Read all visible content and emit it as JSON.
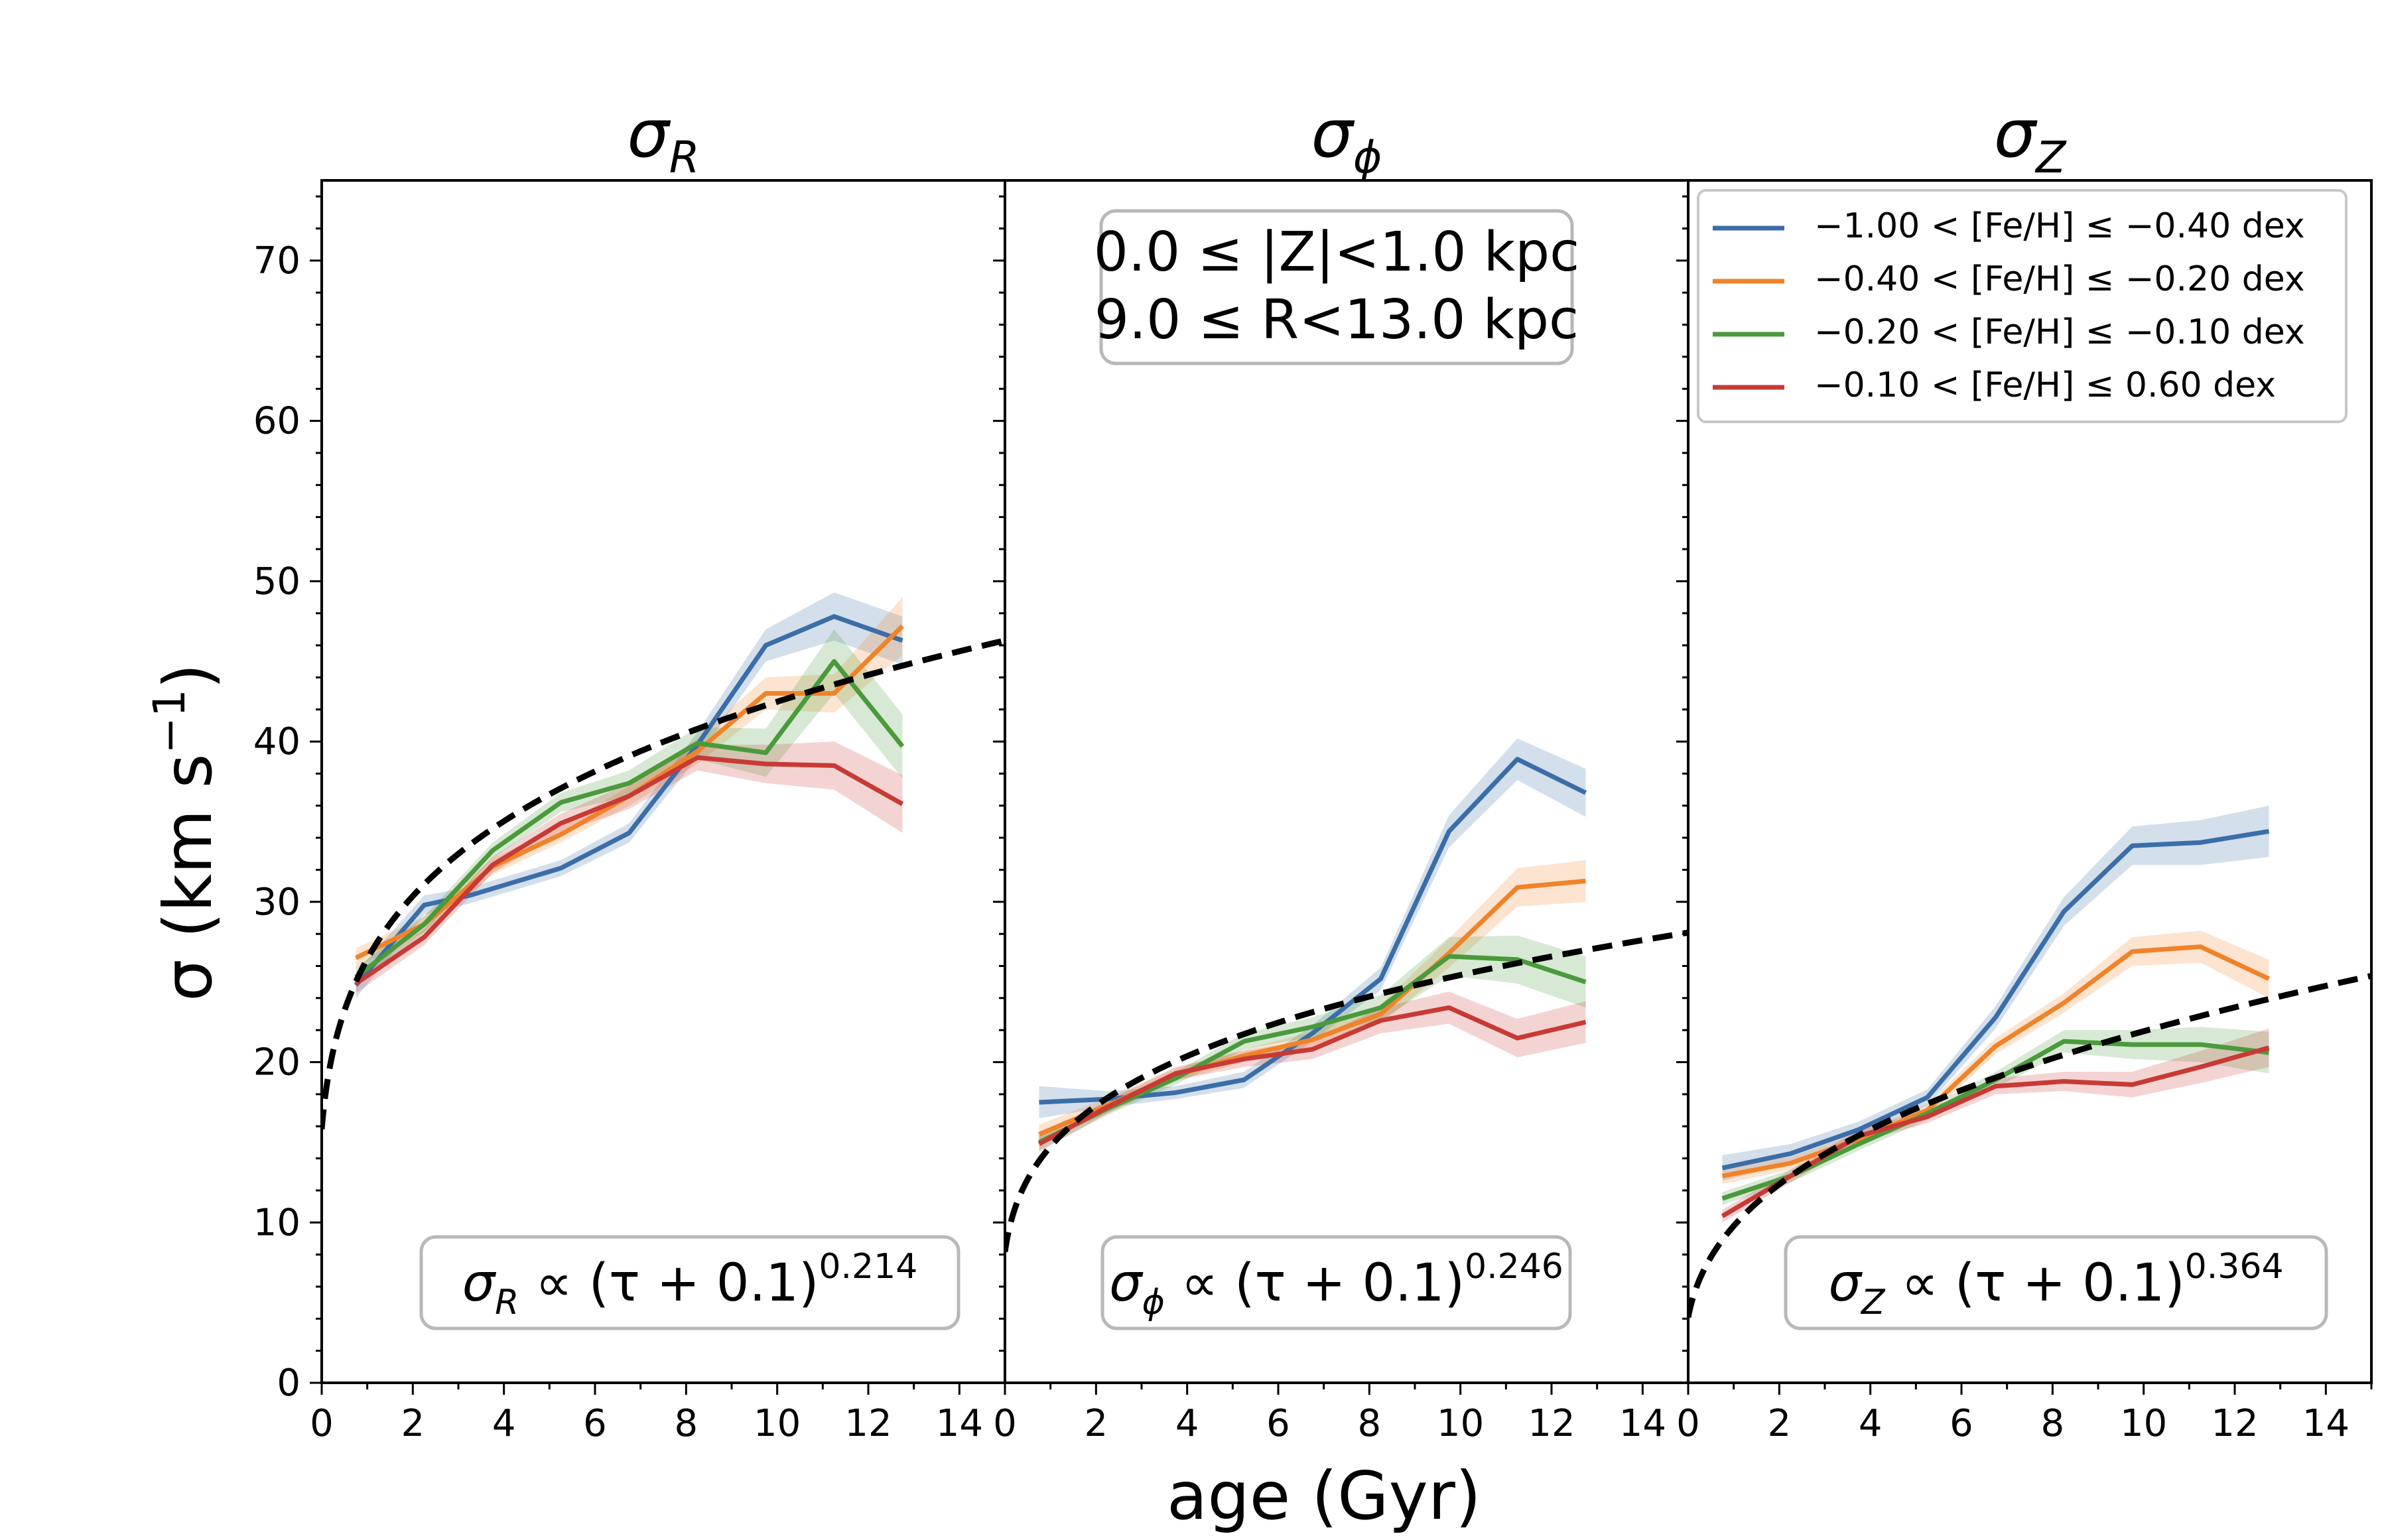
{
  "figure": {
    "ylabel_main": "σ (km s",
    "ylabel_exp": "−1",
    "ylabel_close": ")",
    "xlabel": "age (Gyr)"
  },
  "legend": {
    "entries": [
      {
        "label": "−1.00 < [Fe/H] ≤  −0.40 dex",
        "color": "#3b6ea8"
      },
      {
        "label": "−0.40 < [Fe/H] ≤  −0.20 dex",
        "color": "#f0832a"
      },
      {
        "label": "−0.20 < [Fe/H] ≤  −0.10 dex",
        "color": "#4a9a3c"
      },
      {
        "label": "−0.10 < [Fe/H] ≤  0.60 dex",
        "color": "#c83a35"
      }
    ]
  },
  "annotation": {
    "line1": "0.0 ≤ |Z|<1.0 kpc",
    "line2": "9.0 ≤ R<13.0 kpc"
  },
  "chart_data": [
    {
      "type": "line",
      "title": "σR",
      "title_base": "σ",
      "title_sub": "R",
      "xlabel": "age (Gyr)",
      "ylabel": "σ (km s−1)",
      "xlim": [
        0,
        15
      ],
      "ylim": [
        0,
        75
      ],
      "xticks": [
        "0",
        "2",
        "4",
        "6",
        "8",
        "10",
        "12",
        "14"
      ],
      "yticks": [
        "0",
        "10",
        "20",
        "30",
        "40",
        "50",
        "60",
        "70"
      ],
      "fit": {
        "exponent": "0.214",
        "exp_value": 0.214,
        "amplitude": 25.9,
        "offset": 0.1,
        "label_base": "σ",
        "label_sub": "R",
        "label_mid": " ∝  (τ + 0.1)",
        "label_exp": "0.214"
      },
      "series": [
        {
          "name": "−1.00 < [Fe/H] ≤ −0.40 dex",
          "color": "#3b6ea8",
          "x": [
            0.75,
            2.25,
            3.25,
            5.25,
            6.75,
            8.25,
            9.75,
            11.25,
            12.75
          ],
          "values": [
            24.8,
            29.8,
            30.4,
            32.1,
            34.3,
            39.8,
            46.0,
            47.8,
            46.3
          ],
          "err": [
            0.8,
            0.6,
            0.5,
            0.5,
            0.6,
            0.8,
            1.0,
            1.5,
            1.5
          ]
        },
        {
          "name": "−0.40 < [Fe/H] ≤ −0.20 dex",
          "color": "#f0832a",
          "x": [
            0.75,
            2.25,
            3.75,
            5.25,
            6.75,
            8.25,
            9.75,
            11.25,
            12.75
          ],
          "values": [
            26.5,
            28.6,
            32.2,
            34.2,
            36.6,
            39.4,
            43.0,
            43.0,
            47.2
          ],
          "err": [
            0.6,
            0.5,
            0.5,
            0.5,
            0.6,
            0.8,
            1.0,
            1.2,
            1.8
          ]
        },
        {
          "name": "−0.20 < [Fe/H] ≤ −0.10 dex",
          "color": "#4a9a3c",
          "x": [
            0.75,
            2.25,
            3.75,
            5.25,
            6.75,
            8.25,
            9.75,
            11.25,
            12.75
          ],
          "values": [
            25.3,
            28.6,
            33.2,
            36.2,
            37.4,
            39.9,
            39.3,
            45.0,
            39.7
          ],
          "err": [
            0.6,
            0.5,
            0.5,
            0.6,
            0.8,
            1.0,
            1.5,
            2.0,
            2.0
          ]
        },
        {
          "name": "−0.10 < [Fe/H] ≤ 0.60 dex",
          "color": "#c83a35",
          "x": [
            0.75,
            2.25,
            3.75,
            5.25,
            6.75,
            8.25,
            9.75,
            11.25,
            12.75
          ],
          "values": [
            24.9,
            27.8,
            32.3,
            34.9,
            36.6,
            39.0,
            38.6,
            38.5,
            36.1
          ],
          "err": [
            0.6,
            0.5,
            0.5,
            0.6,
            0.8,
            0.8,
            1.2,
            1.5,
            1.8
          ]
        }
      ]
    },
    {
      "type": "line",
      "title": "σφ",
      "title_base": "σ",
      "title_sub": "ϕ",
      "xlabel": "age (Gyr)",
      "ylabel": "σ (km s−1)",
      "xlim": [
        0,
        15
      ],
      "ylim": [
        0,
        75
      ],
      "xticks": [
        "0",
        "2",
        "4",
        "6",
        "8",
        "10",
        "12",
        "14"
      ],
      "yticks": [],
      "fit": {
        "exponent": "0.246",
        "exp_value": 0.246,
        "amplitude": 14.4,
        "offset": 0.1,
        "label_base": "σ",
        "label_sub": "ϕ",
        "label_mid": " ∝  (τ + 0.1)",
        "label_exp": "0.246"
      },
      "series": [
        {
          "name": "−1.00 < [Fe/H] ≤ −0.40 dex",
          "color": "#3b6ea8",
          "x": [
            0.75,
            2.25,
            3.75,
            5.25,
            6.75,
            8.25,
            9.75,
            11.25,
            12.75
          ],
          "values": [
            17.5,
            17.7,
            18.1,
            18.9,
            21.8,
            25.2,
            34.4,
            38.9,
            36.8
          ],
          "err": [
            1.0,
            0.5,
            0.4,
            0.5,
            0.5,
            0.7,
            1.0,
            1.3,
            1.5
          ]
        },
        {
          "name": "−0.40 < [Fe/H] ≤ −0.20 dex",
          "color": "#f0832a",
          "x": [
            0.75,
            2.25,
            3.75,
            5.25,
            6.75,
            8.25,
            9.75,
            11.25,
            12.75
          ],
          "values": [
            15.5,
            17.3,
            19.2,
            20.4,
            21.4,
            23.0,
            26.8,
            30.9,
            31.3
          ],
          "err": [
            0.6,
            0.5,
            0.4,
            0.4,
            0.5,
            0.6,
            0.9,
            1.2,
            1.3
          ]
        },
        {
          "name": "−0.20 < [Fe/H] ≤ −0.10 dex",
          "color": "#4a9a3c",
          "x": [
            0.75,
            2.25,
            3.75,
            5.25,
            6.75,
            8.25,
            9.75,
            11.25,
            12.75
          ],
          "values": [
            15.0,
            17.1,
            19.0,
            21.3,
            22.2,
            23.4,
            26.6,
            26.4,
            25.0
          ],
          "err": [
            0.5,
            0.4,
            0.4,
            0.5,
            0.6,
            0.8,
            1.2,
            1.5,
            1.6
          ]
        },
        {
          "name": "−0.10 < [Fe/H] ≤ 0.60 dex",
          "color": "#c83a35",
          "x": [
            0.75,
            2.25,
            3.75,
            5.25,
            6.75,
            8.25,
            9.75,
            11.25,
            12.75
          ],
          "values": [
            14.9,
            17.2,
            19.3,
            20.2,
            20.8,
            22.6,
            23.4,
            21.5,
            22.5
          ],
          "err": [
            0.5,
            0.4,
            0.4,
            0.5,
            0.6,
            0.8,
            1.0,
            1.2,
            1.3
          ]
        }
      ]
    },
    {
      "type": "line",
      "title": "σZ",
      "title_base": "σ",
      "title_sub": "Z",
      "xlabel": "age (Gyr)",
      "ylabel": "σ (km s−1)",
      "xlim": [
        0,
        15
      ],
      "ylim": [
        0,
        75
      ],
      "xticks": [
        "0",
        "2",
        "4",
        "6",
        "8",
        "10",
        "12",
        "14"
      ],
      "yticks": [],
      "fit": {
        "exponent": "0.364",
        "exp_value": 0.364,
        "amplitude": 9.45,
        "offset": 0.1,
        "label_base": "σ",
        "label_sub": "Z",
        "label_mid": " ∝  (τ + 0.1)",
        "label_exp": "0.364"
      },
      "series": [
        {
          "name": "−1.00 < [Fe/H] ≤ −0.40 dex",
          "color": "#3b6ea8",
          "x": [
            0.75,
            2.25,
            3.75,
            5.25,
            6.75,
            8.25,
            9.75,
            11.25,
            12.75
          ],
          "values": [
            13.4,
            14.3,
            15.8,
            17.8,
            22.8,
            29.4,
            33.5,
            33.7,
            34.4
          ],
          "err": [
            0.8,
            0.6,
            0.5,
            0.5,
            0.7,
            0.9,
            1.2,
            1.4,
            1.6
          ]
        },
        {
          "name": "−0.40 < [Fe/H] ≤ −0.20 dex",
          "color": "#f0832a",
          "x": [
            0.75,
            2.25,
            3.75,
            5.25,
            6.75,
            8.25,
            9.75,
            11.25,
            12.75
          ],
          "values": [
            12.9,
            13.7,
            15.2,
            17.0,
            21.0,
            23.7,
            26.9,
            27.2,
            25.2
          ],
          "err": [
            0.5,
            0.4,
            0.4,
            0.4,
            0.5,
            0.6,
            0.9,
            1.0,
            1.2
          ]
        },
        {
          "name": "−0.20 < [Fe/H] ≤ −0.10 dex",
          "color": "#4a9a3c",
          "x": [
            0.75,
            2.25,
            3.75,
            5.25,
            6.75,
            8.25,
            9.75,
            11.25,
            12.75
          ],
          "values": [
            11.5,
            12.9,
            14.9,
            16.8,
            18.9,
            21.3,
            21.1,
            21.1,
            20.6
          ],
          "err": [
            0.4,
            0.4,
            0.4,
            0.4,
            0.5,
            0.7,
            0.9,
            1.1,
            1.3
          ]
        },
        {
          "name": "−0.10 < [Fe/H] ≤ 0.60 dex",
          "color": "#c83a35",
          "x": [
            0.75,
            2.25,
            3.75,
            5.25,
            6.75,
            8.25,
            9.75,
            11.25,
            12.75
          ],
          "values": [
            10.4,
            12.9,
            15.4,
            16.6,
            18.5,
            18.8,
            18.6,
            19.7,
            20.9
          ],
          "err": [
            0.4,
            0.4,
            0.4,
            0.4,
            0.5,
            0.6,
            0.8,
            1.0,
            1.2
          ]
        }
      ]
    }
  ]
}
